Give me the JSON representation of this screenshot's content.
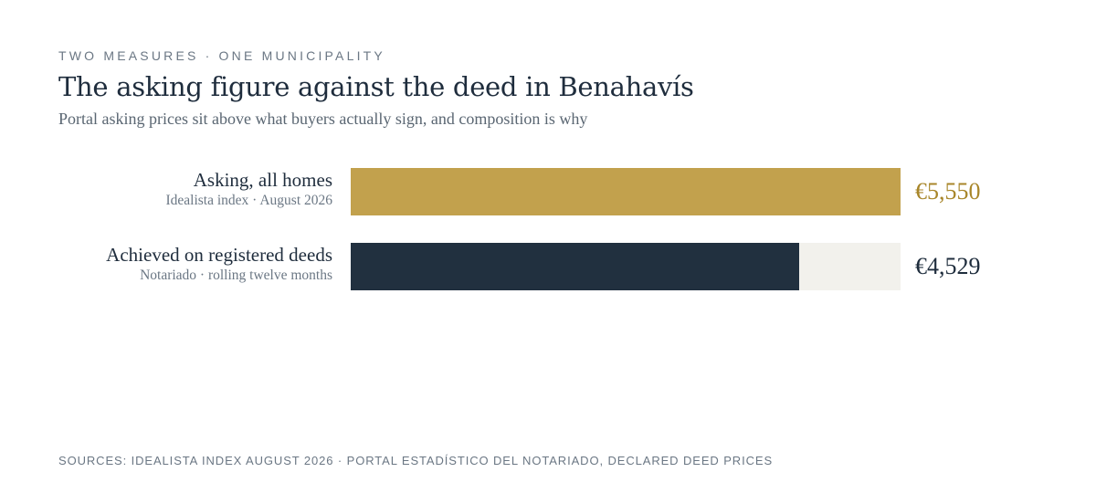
{
  "header": {
    "eyebrow": "TWO MEASURES · ONE MUNICIPALITY",
    "title": "The asking figure against the deed in Benahavís",
    "subtitle": "Portal asking prices sit above what buyers actually sign, and composition is why"
  },
  "chart_data": {
    "type": "bar",
    "orientation": "horizontal",
    "categories": [
      "Asking, all homes",
      "Achieved on registered deeds"
    ],
    "category_sources": [
      "Idealista index · August 2026",
      "Notariado · rolling twelve months"
    ],
    "values": [
      5550,
      4529
    ],
    "value_labels": [
      "€5,550",
      "€4,529"
    ],
    "colors": [
      "#c2a14d",
      "#21303f"
    ],
    "value_label_colors": [
      "#a8862a",
      "#1f2d3d"
    ],
    "track_color": "#f2f1ec",
    "xlim": [
      0,
      5550
    ],
    "grid": false
  },
  "footer": {
    "sources": "SOURCES: IDEALISTA INDEX AUGUST 2026 · PORTAL ESTADÍSTICO DEL NOTARIADO, DECLARED DEED PRICES"
  }
}
